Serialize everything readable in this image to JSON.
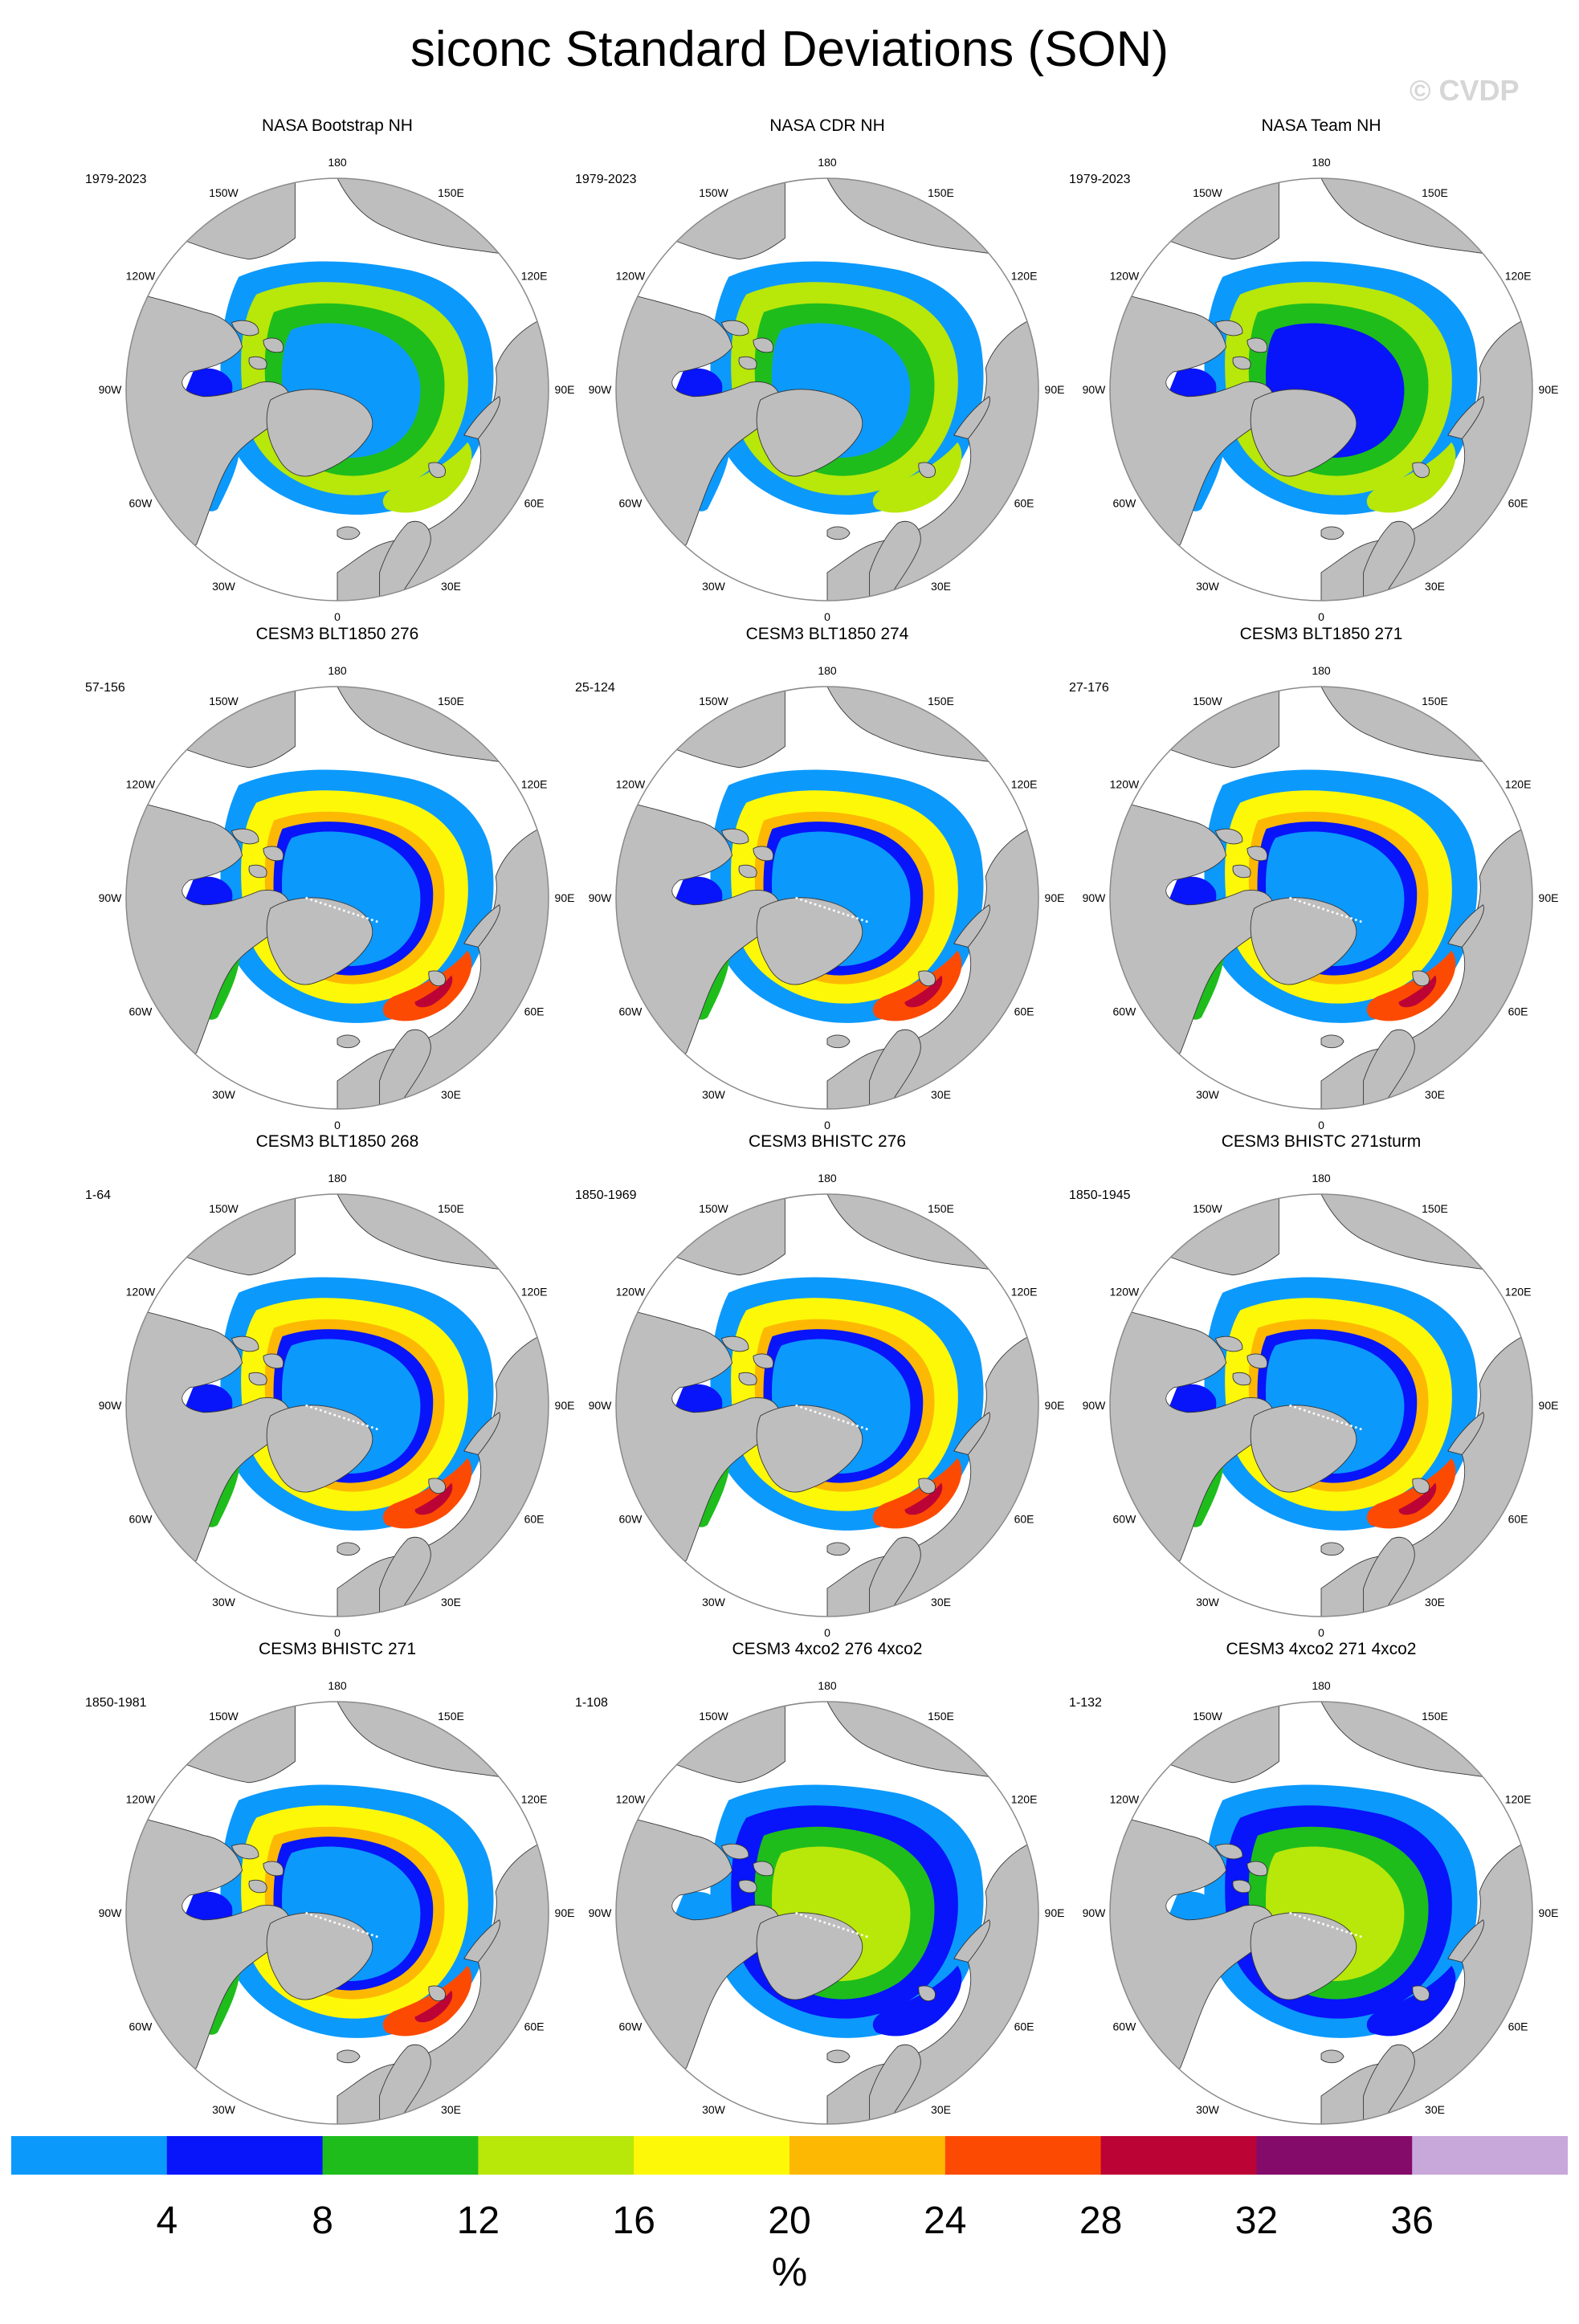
{
  "figure_title": "siconc Standard Deviations (SON)",
  "watermark": "© CVDP",
  "colors": {
    "land": "#bebebe",
    "ocean": "#ffffff",
    "outline": "#333333",
    "rim": "#8a8a8a"
  },
  "longitude_labels": [
    "180",
    "150E",
    "120E",
    "90E",
    "60E",
    "30E",
    "0",
    "30W",
    "60W",
    "90W",
    "120W",
    "150W"
  ],
  "panels": [
    {
      "title": "NASA Bootstrap NH",
      "period": "1979-2023",
      "pattern": "obs"
    },
    {
      "title": "NASA CDR NH",
      "period": "1979-2023",
      "pattern": "obs"
    },
    {
      "title": "NASA Team NH",
      "period": "1979-2023",
      "pattern": "obs-team"
    },
    {
      "title": "CESM3 BLT1850 276",
      "period": "57-156",
      "pattern": "model"
    },
    {
      "title": "CESM3 BLT1850 274",
      "period": "25-124",
      "pattern": "model"
    },
    {
      "title": "CESM3 BLT1850 271",
      "period": "27-176",
      "pattern": "model"
    },
    {
      "title": "CESM3 BLT1850 268",
      "period": "1-64",
      "pattern": "model"
    },
    {
      "title": "CESM3 BHISTC 276",
      "period": "1850-1969",
      "pattern": "model"
    },
    {
      "title": "CESM3 BHISTC 271sturm",
      "period": "1850-1945",
      "pattern": "model"
    },
    {
      "title": "CESM3 BHISTC 271",
      "period": "1850-1981",
      "pattern": "model"
    },
    {
      "title": "CESM3 4xco2 276 4xco2",
      "period": "1-108",
      "pattern": "warm"
    },
    {
      "title": "CESM3 4xco2 271 4xco2",
      "period": "1-132",
      "pattern": "warm"
    }
  ],
  "colorbar": {
    "unit": "%",
    "tick_labels": [
      "4",
      "8",
      "12",
      "16",
      "20",
      "24",
      "28",
      "32",
      "36"
    ],
    "colors": [
      "#0c99fc",
      "#0814fa",
      "#1ebd1c",
      "#b8e70a",
      "#fdf808",
      "#fdb804",
      "#fd4a02",
      "#bb0435",
      "#840b6a",
      "#c8a7da"
    ]
  }
}
